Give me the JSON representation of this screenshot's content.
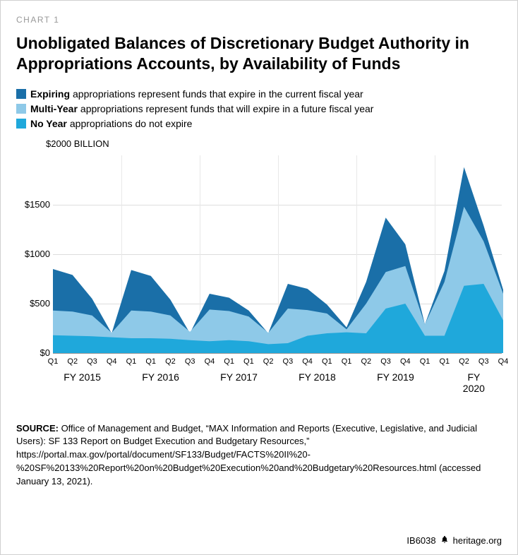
{
  "chart_label": "CHART 1",
  "title": "Unobligated Balances of Discretionary Budget Authority in Appropriations Accounts, by Availability of Funds",
  "legend": [
    {
      "bold": "Expiring",
      "text": " appropriations represent funds that expire in the current fiscal year",
      "color": "#1a6fa8"
    },
    {
      "bold": "Multi-Year",
      "text": " appropriations represent funds that will expire in a future fiscal year",
      "color": "#8ec9e8"
    },
    {
      "bold": "No Year",
      "text": " appropriations do not expire",
      "color": "#1fa8db"
    }
  ],
  "chart": {
    "type": "area-stacked",
    "y_axis": {
      "label": "$2000 BILLION",
      "ticks": [
        0,
        500,
        1000,
        1500
      ],
      "tick_labels": [
        "$0",
        "$500",
        "$1000",
        "$1500"
      ],
      "max": 2000
    },
    "x_labels": [
      "Q1",
      "Q2",
      "Q3",
      "Q4",
      "Q1",
      "Q1",
      "Q2",
      "Q3",
      "Q4",
      "Q1",
      "Q1",
      "Q2",
      "Q3",
      "Q4",
      "Q1",
      "Q1",
      "Q2",
      "Q3",
      "Q4",
      "Q1",
      "Q1",
      "Q2",
      "Q3",
      "Q4"
    ],
    "fy_groups": [
      {
        "label": "FY 2015",
        "center_idx": 1.5
      },
      {
        "label": "FY 2016",
        "center_idx": 5.5
      },
      {
        "label": "FY 2017",
        "center_idx": 9.5
      },
      {
        "label": "FY 2018",
        "center_idx": 13.5
      },
      {
        "label": "FY 2019",
        "center_idx": 17.5
      },
      {
        "label": "FY 2020",
        "center_idx": 21.5
      }
    ],
    "series": {
      "no_year": [
        180,
        175,
        170,
        160,
        150,
        150,
        145,
        130,
        120,
        130,
        120,
        90,
        100,
        175,
        200,
        210,
        200,
        450,
        500,
        175,
        175,
        680,
        700,
        330
      ],
      "multi_year": [
        430,
        420,
        380,
        205,
        430,
        420,
        380,
        215,
        440,
        425,
        370,
        205,
        450,
        435,
        400,
        240,
        500,
        820,
        880,
        290,
        720,
        1480,
        1130,
        600
      ],
      "expiring": [
        850,
        790,
        550,
        200,
        840,
        780,
        540,
        200,
        600,
        560,
        430,
        200,
        700,
        650,
        490,
        260,
        720,
        1370,
        1100,
        290,
        830,
        1880,
        1290,
        640
      ]
    },
    "colors": {
      "no_year": "#1fa8db",
      "multi_year": "#8ec9e8",
      "expiring": "#1a6fa8"
    },
    "background": "#ffffff",
    "grid_color": "#dddddd"
  },
  "source": {
    "label": "SOURCE:",
    "text": " Office of Management and Budget, “MAX Information and Reports (Executive, Legislative, and Judicial Users): SF 133 Report on Budget Execution and Budgetary Resources,” https://portal.max.gov/portal/document/SF133/Budget/FACTS%20II%20-%20SF%20133%20Report%20on%20Budget%20Execution%20and%20Budgetary%20Resources.html (accessed January 13, 2021)."
  },
  "footer": {
    "id": "IB6038",
    "site": "heritage.org"
  }
}
